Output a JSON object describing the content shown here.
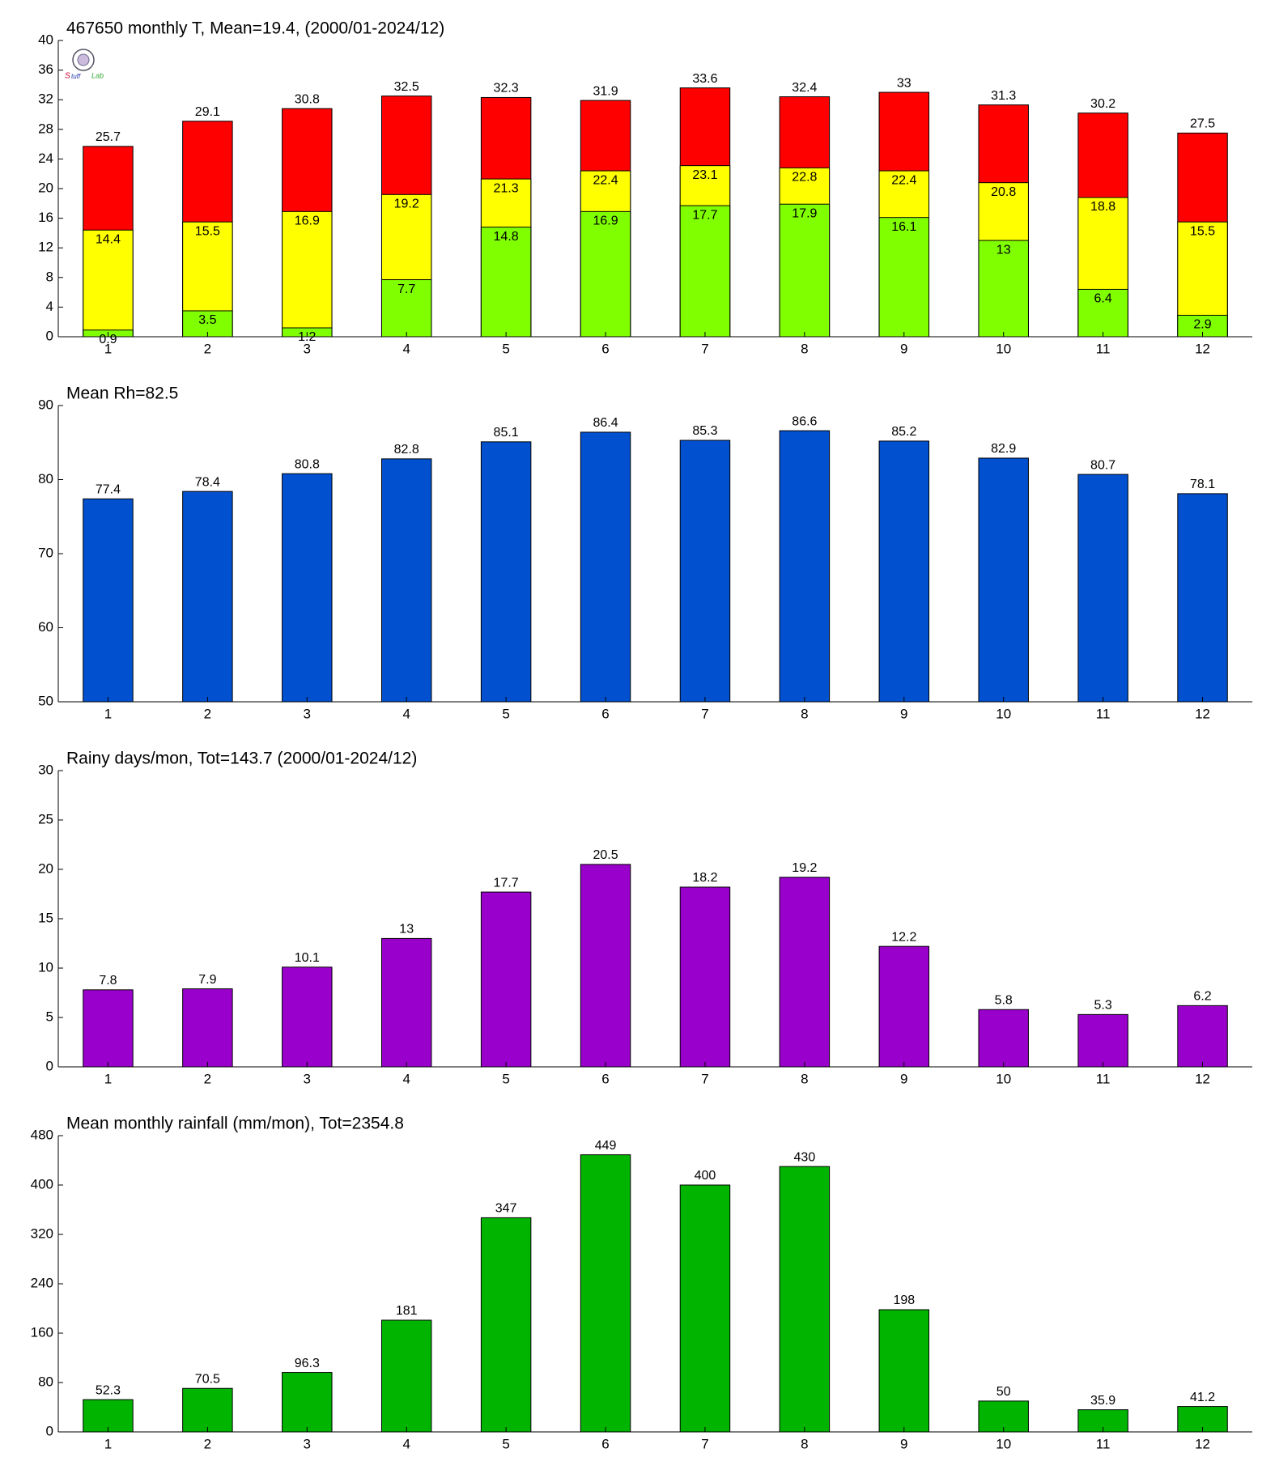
{
  "chart_data": [
    {
      "type": "bar",
      "title": "467650 monthly T, Mean=19.4, (2000/01-2024/12)",
      "categories": [
        "1",
        "2",
        "3",
        "4",
        "5",
        "6",
        "7",
        "8",
        "9",
        "10",
        "11",
        "12"
      ],
      "series": [
        {
          "color": "#ff0000",
          "values": [
            25.7,
            29.1,
            30.8,
            32.5,
            32.3,
            31.9,
            33.6,
            32.4,
            33,
            31.3,
            30.2,
            27.5
          ]
        },
        {
          "color": "#ffff00",
          "values": [
            14.4,
            15.5,
            16.9,
            19.2,
            21.3,
            22.4,
            23.1,
            22.8,
            22.4,
            20.8,
            18.8,
            15.5
          ]
        },
        {
          "color": "#80ff00",
          "values": [
            0.9,
            3.5,
            1.2,
            7.7,
            14.8,
            16.9,
            17.7,
            17.9,
            16.1,
            13,
            6.4,
            2.9
          ]
        }
      ],
      "ylim": [
        0,
        40
      ],
      "yticks": [
        0,
        4,
        8,
        12,
        16,
        20,
        24,
        28,
        32,
        36,
        40
      ]
    },
    {
      "type": "bar",
      "title": "Mean Rh=82.5",
      "categories": [
        "1",
        "2",
        "3",
        "4",
        "5",
        "6",
        "7",
        "8",
        "9",
        "10",
        "11",
        "12"
      ],
      "series": [
        {
          "color": "#0050d0",
          "values": [
            77.4,
            78.4,
            80.8,
            82.8,
            85.1,
            86.4,
            85.3,
            86.6,
            85.2,
            82.9,
            80.7,
            78.1
          ]
        }
      ],
      "ylim": [
        50,
        90
      ],
      "yticks": [
        50,
        60,
        70,
        80,
        90
      ]
    },
    {
      "type": "bar",
      "title": "Rainy days/mon, Tot=143.7 (2000/01-2024/12)",
      "categories": [
        "1",
        "2",
        "3",
        "4",
        "5",
        "6",
        "7",
        "8",
        "9",
        "10",
        "11",
        "12"
      ],
      "series": [
        {
          "color": "#9900cc",
          "values": [
            7.8,
            7.9,
            10.1,
            13,
            17.7,
            20.5,
            18.2,
            19.2,
            12.2,
            5.8,
            5.3,
            6.2
          ]
        }
      ],
      "ylim": [
        0,
        30
      ],
      "yticks": [
        0,
        5,
        10,
        15,
        20,
        25,
        30
      ]
    },
    {
      "type": "bar",
      "title": "Mean monthly rainfall (mm/mon), Tot=2354.8",
      "categories": [
        "1",
        "2",
        "3",
        "4",
        "5",
        "6",
        "7",
        "8",
        "9",
        "10",
        "11",
        "12"
      ],
      "series": [
        {
          "color": "#00b400",
          "values": [
            52.3,
            70.5,
            96.3,
            181,
            347,
            449,
            400,
            430,
            198,
            50,
            35.9,
            41.2
          ]
        }
      ],
      "ylim": [
        0,
        480
      ],
      "yticks": [
        0,
        80,
        160,
        240,
        320,
        400,
        480
      ]
    }
  ]
}
